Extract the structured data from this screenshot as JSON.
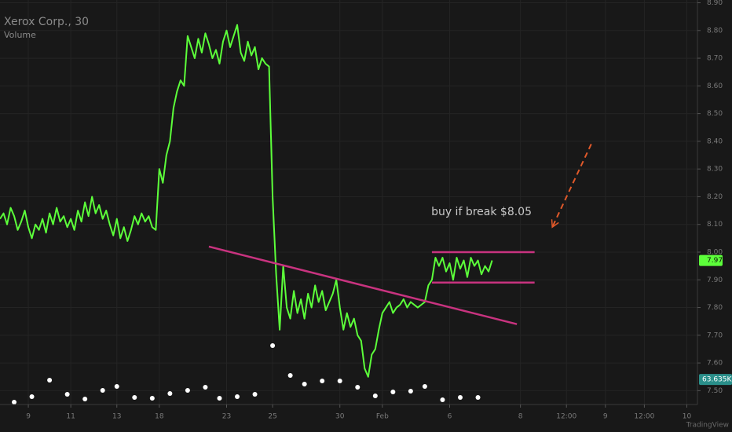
{
  "chart_data": {
    "type": "line",
    "title": "Xerox Corp., 30",
    "series": [
      {
        "name": "Xerox Corp.",
        "color": "#5cff3a",
        "values": [
          8.12,
          8.14,
          8.1,
          8.16,
          8.13,
          8.08,
          8.11,
          8.15,
          8.09,
          8.05,
          8.1,
          8.08,
          8.12,
          8.07,
          8.14,
          8.1,
          8.16,
          8.11,
          8.13,
          8.09,
          8.12,
          8.08,
          8.15,
          8.11,
          8.18,
          8.13,
          8.2,
          8.14,
          8.17,
          8.12,
          8.15,
          8.1,
          8.06,
          8.12,
          8.05,
          8.09,
          8.04,
          8.08,
          8.13,
          8.1,
          8.14,
          8.11,
          8.13,
          8.09,
          8.08,
          8.3,
          8.25,
          8.35,
          8.4,
          8.52,
          8.58,
          8.62,
          8.6,
          8.78,
          8.74,
          8.7,
          8.77,
          8.72,
          8.79,
          8.75,
          8.7,
          8.73,
          8.68,
          8.76,
          8.8,
          8.74,
          8.78,
          8.82,
          8.72,
          8.69,
          8.76,
          8.71,
          8.74,
          8.66,
          8.7,
          8.68,
          8.67,
          8.2,
          7.92,
          7.72,
          7.95,
          7.8,
          7.76,
          7.86,
          7.78,
          7.83,
          7.76,
          7.85,
          7.8,
          7.88,
          7.82,
          7.86,
          7.79,
          7.82,
          7.85,
          7.9,
          7.8,
          7.72,
          7.78,
          7.73,
          7.76,
          7.7,
          7.68,
          7.58,
          7.55,
          7.63,
          7.65,
          7.72,
          7.78,
          7.8,
          7.82,
          7.78,
          7.8,
          7.81,
          7.83,
          7.8,
          7.82,
          7.81,
          7.8,
          7.81,
          7.82,
          7.88,
          7.9,
          7.98,
          7.95,
          7.98,
          7.93,
          7.96,
          7.9,
          7.98,
          7.94,
          7.97,
          7.91,
          7.98,
          7.95,
          7.97,
          7.92,
          7.95,
          7.93,
          7.97
        ]
      }
    ],
    "last_price": 7.97,
    "xlim": [
      0,
      197
    ],
    "xticks": [
      {
        "value": 8,
        "label": "9"
      },
      {
        "value": 20,
        "label": "11"
      },
      {
        "value": 33,
        "label": "13"
      },
      {
        "value": 45,
        "label": "18"
      },
      {
        "value": 64,
        "label": "23"
      },
      {
        "value": 77,
        "label": "25"
      },
      {
        "value": 96,
        "label": "30"
      },
      {
        "value": 108,
        "label": "Feb"
      },
      {
        "value": 127,
        "label": "6"
      },
      {
        "value": 147,
        "label": "8"
      },
      {
        "value": 160,
        "label": "12:00"
      },
      {
        "value": 171,
        "label": "9"
      },
      {
        "value": 182,
        "label": "12:00"
      },
      {
        "value": 194,
        "label": "10"
      }
    ],
    "ylim": [
      7.45,
      8.91
    ],
    "yticks": [
      {
        "value": 7.5,
        "label": "7.50"
      },
      {
        "value": 7.6,
        "label": "7.60"
      },
      {
        "value": 7.7,
        "label": "7.70"
      },
      {
        "value": 7.8,
        "label": "7.80"
      },
      {
        "value": 7.9,
        "label": "7.90"
      },
      {
        "value": 8.0,
        "label": "8.00"
      },
      {
        "value": 8.1,
        "label": "8.10"
      },
      {
        "value": 8.2,
        "label": "8.20"
      },
      {
        "value": 8.3,
        "label": "8.30"
      },
      {
        "value": 8.4,
        "label": "8.40"
      },
      {
        "value": 8.5,
        "label": "8.50"
      },
      {
        "value": 8.6,
        "label": "8.60"
      },
      {
        "value": 8.7,
        "label": "8.70"
      },
      {
        "value": 8.8,
        "label": "8.80"
      },
      {
        "value": 8.9,
        "label": "8.90"
      }
    ],
    "grid": true,
    "volume": {
      "name": "Volume",
      "color": "#ffffff",
      "ylim": [
        0,
        170
      ],
      "x": [
        4,
        9,
        14,
        19,
        24,
        29,
        33,
        38,
        43,
        48,
        53,
        58,
        62,
        67,
        72,
        77,
        82,
        86,
        91,
        96,
        101,
        106,
        111,
        116,
        120,
        125,
        130,
        135
      ],
      "values": [
        6,
        20,
        62,
        26,
        14,
        36,
        46,
        18,
        16,
        28,
        36,
        44,
        16,
        20,
        26,
        150,
        74,
        52,
        60,
        60,
        44,
        22,
        32,
        34,
        46,
        12,
        18,
        18
      ],
      "last": {
        "value": 63.635,
        "label": "63.635K"
      }
    },
    "drawings": [
      {
        "type": "trendline",
        "color": "#c8337f",
        "x": [
          59,
          146
        ],
        "y": [
          8.02,
          7.74
        ]
      },
      {
        "type": "hline",
        "color": "#c8337f",
        "x": [
          122,
          151
        ],
        "y": [
          8.0,
          8.0
        ]
      },
      {
        "type": "hline",
        "color": "#c8337f",
        "x": [
          122,
          151
        ],
        "y": [
          7.89,
          7.89
        ]
      },
      {
        "type": "arrow",
        "color": "#e0592a",
        "x": [
          167,
          156
        ],
        "y": [
          8.39,
          8.09
        ]
      }
    ],
    "annotations": [
      {
        "text": "buy if break $8.05",
        "x": 136,
        "y": 8.145
      }
    ],
    "watermark": "TradingView"
  }
}
